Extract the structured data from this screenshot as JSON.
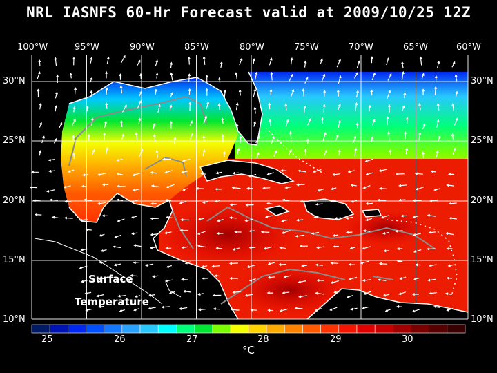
{
  "title": "NRL IASNFS  60-Hr Forecast valid at 2009/10/25 12Z",
  "map_labels": [
    "Surface",
    "Temperature"
  ],
  "longitudes": [
    "100°W",
    "95°W",
    "90°W",
    "85°W",
    "80°W",
    "75°W",
    "70°W",
    "65°W",
    "60°W"
  ],
  "latitudes": [
    "30°N",
    "25°N",
    "20°N",
    "15°N",
    "10°N"
  ],
  "colorbar": {
    "ticks": [
      "25",
      "26",
      "27",
      "28",
      "29",
      "30"
    ],
    "units": "°C",
    "colors": [
      "#001a66",
      "#0014b4",
      "#0028f0",
      "#0050ff",
      "#1478ff",
      "#2aa0ff",
      "#28c8ff",
      "#00ffff",
      "#00ff7a",
      "#00e632",
      "#7cff00",
      "#f4ff00",
      "#ffd200",
      "#ffaa00",
      "#ff8200",
      "#ff5a00",
      "#ff3200",
      "#f41400",
      "#e10000",
      "#c80000",
      "#a00000",
      "#7a0000",
      "#560000",
      "#380000"
    ]
  }
}
